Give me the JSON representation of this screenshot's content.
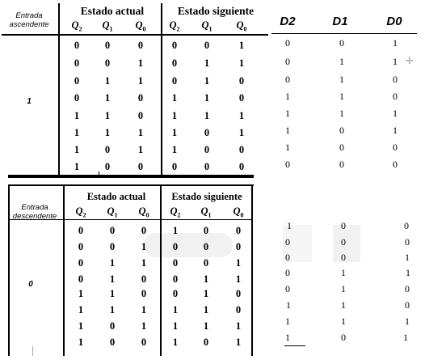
{
  "top_table": {
    "input_label": "Entrada ascendente",
    "input_value": "1",
    "current_state_title": "Estado actual",
    "next_state_title": "Estado siguiente",
    "columns": [
      "Q2",
      "Q1",
      "Q0",
      "Q2",
      "Q1",
      "Q0"
    ],
    "rows": [
      [
        "0",
        "0",
        "0",
        "0",
        "0",
        "1"
      ],
      [
        "0",
        "0",
        "1",
        "0",
        "1",
        "1"
      ],
      [
        "0",
        "1",
        "1",
        "0",
        "1",
        "0"
      ],
      [
        "0",
        "1",
        "0",
        "1",
        "1",
        "0"
      ],
      [
        "1",
        "1",
        "0",
        "1",
        "1",
        "1"
      ],
      [
        "1",
        "1",
        "1",
        "1",
        "0",
        "1"
      ],
      [
        "1",
        "0",
        "1",
        "1",
        "0",
        "0"
      ],
      [
        "1",
        "0",
        "0",
        "0",
        "0",
        "0"
      ]
    ]
  },
  "top_d": {
    "headers": [
      "D2",
      "D1",
      "D0"
    ],
    "rows": [
      [
        "0",
        "0",
        "1"
      ],
      [
        "0",
        "1",
        "1"
      ],
      [
        "0",
        "1",
        "0"
      ],
      [
        "1",
        "1",
        "0"
      ],
      [
        "1",
        "1",
        "1"
      ],
      [
        "1",
        "0",
        "1"
      ],
      [
        "1",
        "0",
        "0"
      ],
      [
        "0",
        "0",
        "0"
      ]
    ]
  },
  "bottom_table": {
    "input_label": "Entrada descendente",
    "input_value": "0",
    "current_state_title": "Estado actual",
    "next_state_title": "Estado siguiente",
    "columns": [
      "Q2",
      "Q1",
      "Q0",
      "Q2",
      "Q1",
      "Q0"
    ],
    "rows": [
      [
        "0",
        "0",
        "0",
        "1",
        "0",
        "0"
      ],
      [
        "0",
        "0",
        "1",
        "0",
        "0",
        "0"
      ],
      [
        "0",
        "1",
        "1",
        "0",
        "0",
        "1"
      ],
      [
        "0",
        "1",
        "0",
        "0",
        "1",
        "1"
      ],
      [
        "1",
        "1",
        "0",
        "0",
        "1",
        "0"
      ],
      [
        "1",
        "1",
        "1",
        "1",
        "1",
        "0"
      ],
      [
        "1",
        "0",
        "1",
        "1",
        "1",
        "1"
      ],
      [
        "1",
        "0",
        "0",
        "1",
        "0",
        "1"
      ]
    ]
  },
  "bottom_d": {
    "rows": [
      [
        "1",
        "0",
        "0"
      ],
      [
        "0",
        "0",
        "0"
      ],
      [
        "0",
        "0",
        "1"
      ],
      [
        "0",
        "1",
        "1"
      ],
      [
        "0",
        "1",
        "0"
      ],
      [
        "1",
        "1",
        "0"
      ],
      [
        "1",
        "1",
        "1"
      ],
      [
        "1",
        "0",
        "1"
      ]
    ]
  }
}
